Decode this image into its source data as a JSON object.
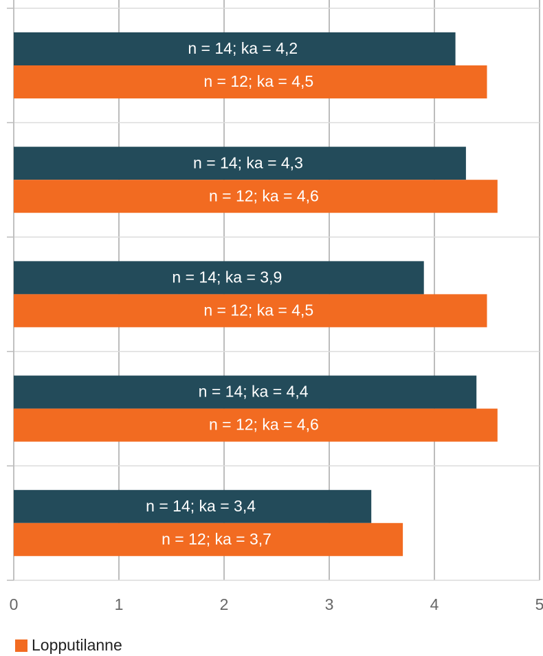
{
  "chart_data": {
    "type": "hbar",
    "categories": [
      null,
      null,
      null,
      null,
      null
    ],
    "series": [
      {
        "color": "#234b5a",
        "values": [
          4.2,
          4.3,
          3.9,
          4.4,
          3.4
        ],
        "value_labels": [
          "n = 14; ka = 4,2",
          "n = 14; ka = 4,3",
          "n = 14; ka = 3,9",
          "n = 14; ka = 4,4",
          "n = 14; ka = 3,4"
        ]
      },
      {
        "name": "Lopputilanne",
        "color": "#f26b21",
        "values": [
          4.5,
          4.6,
          4.5,
          4.6,
          3.7
        ],
        "value_labels": [
          "n = 12; ka = 4,5",
          "n = 12; ka = 4,6",
          "n = 12; ka = 4,5",
          "n = 12; ka = 4,6",
          "n = 12; ka = 3,7"
        ]
      }
    ],
    "xlim": [
      0,
      5
    ],
    "xticks": [
      0,
      1,
      2,
      3,
      4,
      5
    ],
    "grid": true,
    "legend": "bottom-left"
  }
}
